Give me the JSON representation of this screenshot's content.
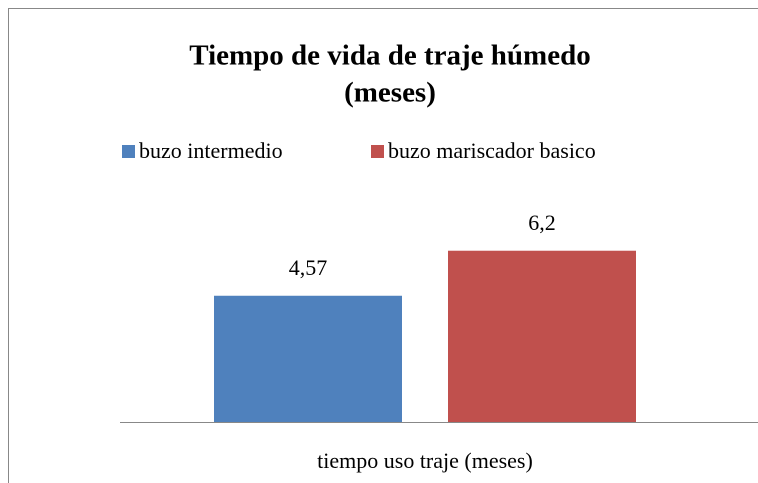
{
  "chart_data": {
    "type": "bar",
    "title": [
      "Tiempo de vida de traje húmedo",
      "(meses)"
    ],
    "categories": [
      "tiempo uso traje (meses)"
    ],
    "series": [
      {
        "name": "buzo intermedio",
        "color": "#4f81bd",
        "values": [
          4.57
        ],
        "value_labels": [
          "4,57"
        ]
      },
      {
        "name": "buzo mariscador basico",
        "color": "#c0504d",
        "values": [
          6.2
        ],
        "value_labels": [
          "6,2"
        ]
      }
    ],
    "ylim": [
      0,
      8
    ]
  }
}
